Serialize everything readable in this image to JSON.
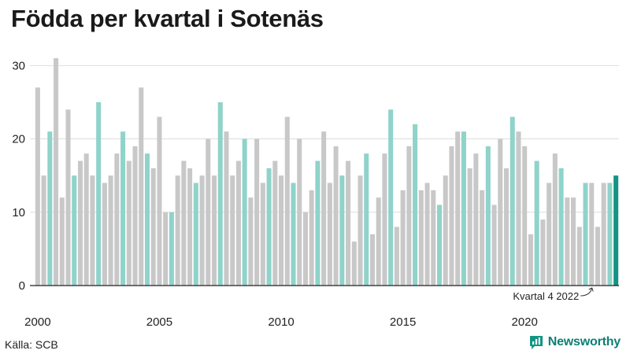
{
  "header": {
    "title": "Födda per kvartal i Sotenäs"
  },
  "footer": {
    "source": "Källa: SCB",
    "brand": "Newsworthy",
    "brand_icon": "bar-chart-speech-bubble-icon"
  },
  "colors": {
    "highlight": "#8fd3ca",
    "default": "#c8c8c8",
    "latest": "#159485",
    "grid": "#dddddd",
    "axis": "#222222"
  },
  "chart_data": {
    "type": "bar",
    "title": "Födda per kvartal i Sotenäs",
    "xlabel": "",
    "ylabel": "",
    "start_year": 2000,
    "quarters_per_year": 4,
    "highlight_quarter": 2,
    "ylim": [
      0,
      31
    ],
    "yticks": [
      0,
      10,
      20,
      30
    ],
    "xticks": [
      "2000",
      "2005",
      "2010",
      "2015",
      "2020"
    ],
    "values": [
      27,
      15,
      21,
      31,
      12,
      24,
      15,
      17,
      18,
      15,
      25,
      14,
      15,
      18,
      21,
      17,
      19,
      27,
      18,
      16,
      23,
      10,
      10,
      15,
      17,
      16,
      14,
      15,
      20,
      15,
      25,
      21,
      15,
      17,
      20,
      12,
      20,
      14,
      16,
      17,
      15,
      23,
      14,
      20,
      10,
      13,
      17,
      21,
      14,
      19,
      15,
      17,
      6,
      15,
      18,
      7,
      12,
      18,
      24,
      8,
      13,
      19,
      22,
      13,
      14,
      13,
      11,
      15,
      19,
      21,
      21,
      16,
      18,
      13,
      19,
      11,
      20,
      16,
      23,
      21,
      19,
      7,
      17,
      9,
      14,
      18,
      16,
      12,
      12,
      8,
      14,
      14,
      8,
      14,
      14,
      15
    ],
    "annotation": {
      "text": "Kvartal 4 2022",
      "index": 91
    }
  }
}
